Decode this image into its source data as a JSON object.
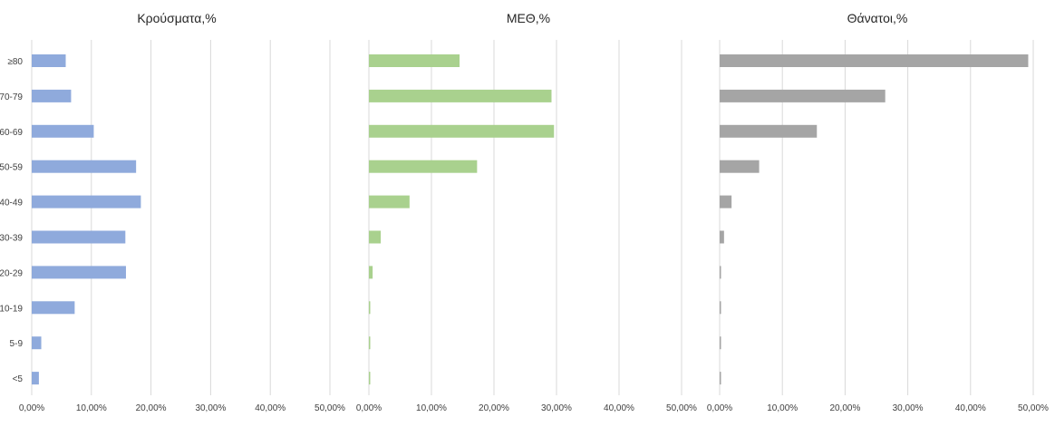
{
  "chart_data": [
    {
      "type": "bar",
      "orientation": "horizontal",
      "title": "Κρούσματα,%",
      "categories": [
        "≥80",
        "70-79",
        "60-69",
        "50-59",
        "40-49",
        "30-39",
        "20-29",
        "10-19",
        "5-9",
        "<5"
      ],
      "values": [
        5.7,
        6.6,
        10.4,
        17.5,
        18.3,
        15.7,
        15.8,
        7.2,
        1.6,
        1.2
      ],
      "xlim": [
        0,
        50
      ],
      "ticks": [
        "0,00%",
        "10,00%",
        "20,00%",
        "30,00%",
        "40,00%",
        "50,00%"
      ],
      "color": "#8faadc",
      "grid": true
    },
    {
      "type": "bar",
      "orientation": "horizontal",
      "title": "ΜΕΘ,%",
      "categories": [
        "≥80",
        "70-79",
        "60-69",
        "50-59",
        "40-49",
        "30-39",
        "20-29",
        "10-19",
        "5-9",
        "<5"
      ],
      "values": [
        14.5,
        29.2,
        29.6,
        17.3,
        6.5,
        1.9,
        0.6,
        0.2,
        0.2,
        0.2
      ],
      "xlim": [
        0,
        50
      ],
      "ticks": [
        "0,00%",
        "10,00%",
        "20,00%",
        "30,00%",
        "40,00%",
        "50,00%"
      ],
      "color": "#a9d18e",
      "grid": true
    },
    {
      "type": "bar",
      "orientation": "horizontal",
      "title": "Θάνατοι,%",
      "categories": [
        "≥80",
        "70-79",
        "60-69",
        "50-59",
        "40-49",
        "30-39",
        "20-29",
        "10-19",
        "5-9",
        "<5"
      ],
      "values": [
        49.2,
        26.4,
        15.5,
        6.3,
        1.9,
        0.7,
        0.2,
        0.1,
        0.0,
        0.1
      ],
      "xlim": [
        0,
        50
      ],
      "ticks": [
        "0,00%",
        "10,00%",
        "20,00%",
        "30,00%",
        "40,00%",
        "50,00%"
      ],
      "color": "#a5a5a5",
      "grid": true
    }
  ]
}
